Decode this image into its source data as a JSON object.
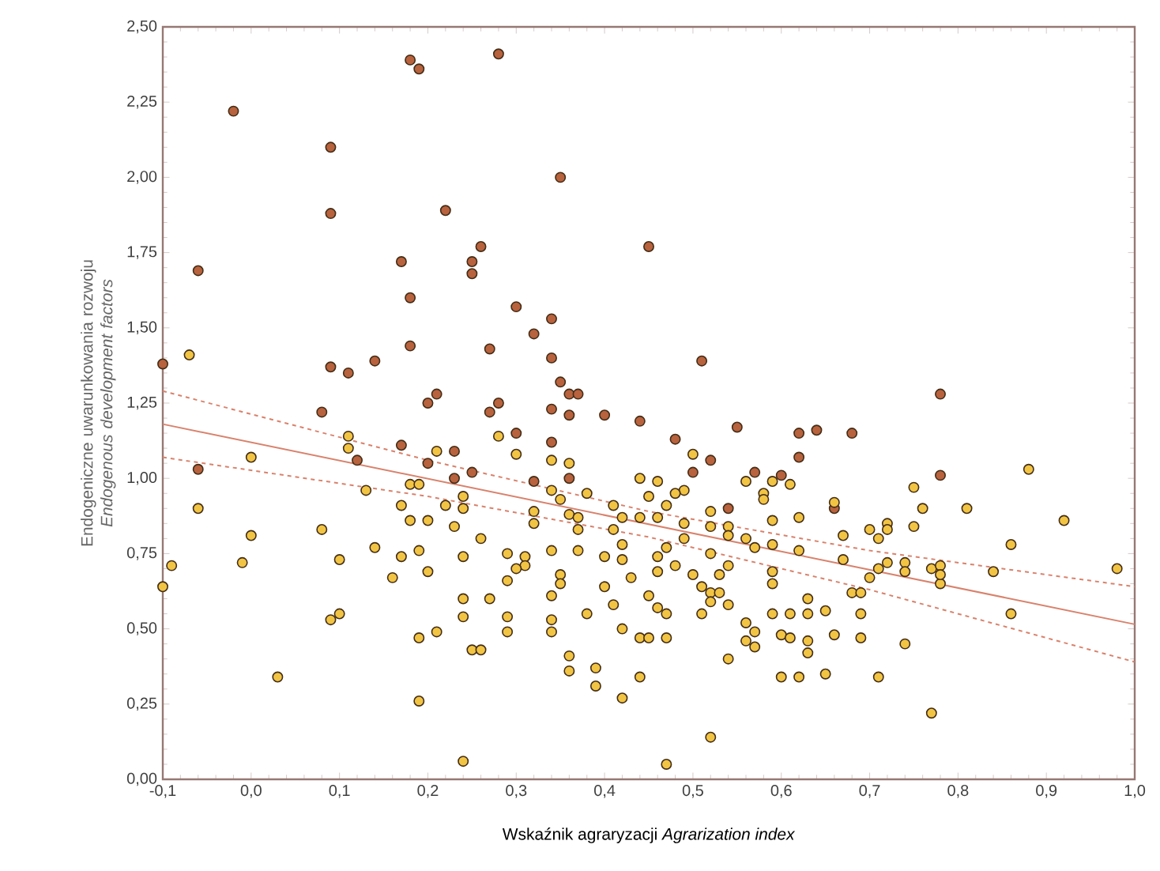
{
  "chart_data": {
    "type": "scatter",
    "xlabel": "Wskaźnik agraryzacji   *Agrarization index*",
    "ylabel": "Endogeniczne uwarunkowania rozwoju *Endogenous development factors*",
    "xlim": [
      -0.1,
      1.0
    ],
    "ylim": [
      0,
      2.5
    ],
    "xticks": [
      {
        "value": -0.1,
        "label": "-0,1"
      },
      {
        "value": 0.0,
        "label": "0,0"
      },
      {
        "value": 0.1,
        "label": "0,1"
      },
      {
        "value": 0.2,
        "label": "0,2"
      },
      {
        "value": 0.3,
        "label": "0,3"
      },
      {
        "value": 0.4,
        "label": "0,4"
      },
      {
        "value": 0.5,
        "label": "0,5"
      },
      {
        "value": 0.6,
        "label": "0,6"
      },
      {
        "value": 0.7,
        "label": "0,7"
      },
      {
        "value": 0.8,
        "label": "0,8"
      },
      {
        "value": 0.9,
        "label": "0,9"
      },
      {
        "value": 1.0,
        "label": "1,0"
      }
    ],
    "yticks": [
      {
        "value": 0,
        "label": "0,00"
      },
      {
        "value": 0.25,
        "label": "0,25"
      },
      {
        "value": 0.5,
        "label": "0,50"
      },
      {
        "value": 0.75,
        "label": "0,75"
      },
      {
        "value": 1.0,
        "label": "1,00"
      },
      {
        "value": 1.25,
        "label": "1,25"
      },
      {
        "value": 1.5,
        "label": "1,50"
      },
      {
        "value": 1.75,
        "label": "1,75"
      },
      {
        "value": 2.0,
        "label": "2,00"
      },
      {
        "value": 2.25,
        "label": "2,25"
      },
      {
        "value": 2.5,
        "label": "2,50"
      }
    ],
    "marker": "circle",
    "series": [
      {
        "color": "#b8623e",
        "x": [
          -0.02,
          0.18,
          0.19,
          0.28,
          0.09,
          0.09,
          0.35,
          0.22,
          -0.06,
          0.17,
          0.25,
          0.25,
          0.26,
          0.45,
          0.18,
          0.3,
          0.34,
          0.32,
          0.34,
          0.27,
          0.18,
          -0.1,
          0.09,
          0.11,
          0.14,
          0.35,
          0.36,
          0.37,
          0.2,
          0.21,
          0.28,
          0.51,
          0.78,
          0.08,
          0.27,
          0.34,
          0.36,
          0.4,
          0.44,
          0.17,
          0.3,
          0.34,
          0.12,
          0.2,
          0.23,
          0.25,
          0.23,
          0.32,
          0.36,
          -0.06,
          0.48,
          0.55,
          0.62,
          0.64,
          0.68,
          0.52,
          0.5,
          0.57,
          0.6,
          0.62,
          0.78,
          0.54,
          0.66
        ],
        "values": [
          2.22,
          2.39,
          2.36,
          2.41,
          2.1,
          1.88,
          2.0,
          1.89,
          1.69,
          1.72,
          1.72,
          1.68,
          1.77,
          1.77,
          1.6,
          1.57,
          1.53,
          1.48,
          1.4,
          1.43,
          1.44,
          1.38,
          1.37,
          1.35,
          1.39,
          1.32,
          1.28,
          1.28,
          1.25,
          1.28,
          1.25,
          1.39,
          1.28,
          1.22,
          1.22,
          1.23,
          1.21,
          1.21,
          1.19,
          1.11,
          1.15,
          1.12,
          1.06,
          1.05,
          1.09,
          1.02,
          1.0,
          0.99,
          1.0,
          1.03,
          1.13,
          1.17,
          1.15,
          1.16,
          1.15,
          1.06,
          1.02,
          1.02,
          1.01,
          1.07,
          1.01,
          0.9,
          0.9
        ]
      },
      {
        "color": "#f2c444",
        "x": [
          -0.07,
          0.11,
          0.11,
          0.21,
          0.28,
          0.3,
          0.34,
          0.36,
          0.0,
          0.13,
          0.18,
          0.19,
          0.24,
          0.24,
          0.22,
          0.17,
          0.18,
          0.2,
          0.23,
          0.26,
          0.34,
          0.35,
          0.38,
          0.32,
          0.32,
          0.36,
          0.37,
          0.37,
          0.41,
          0.42,
          0.44,
          0.45,
          0.44,
          0.41,
          -0.06,
          0.0,
          -0.01,
          0.08,
          0.1,
          -0.09,
          -0.1,
          0.03,
          0.14,
          0.17,
          0.19,
          0.2,
          0.16,
          0.24,
          0.29,
          0.31,
          0.31,
          0.3,
          0.29,
          0.34,
          0.37,
          0.35,
          0.35,
          0.34,
          0.27,
          0.24,
          0.24,
          0.29,
          0.29,
          0.34,
          0.34,
          0.38,
          0.4,
          0.4,
          0.42,
          0.42,
          0.43,
          0.41,
          0.42,
          0.44,
          0.45,
          0.45,
          0.09,
          0.1,
          0.19,
          0.21,
          0.25,
          0.26,
          0.36,
          0.36,
          0.39,
          0.39,
          0.42,
          0.44,
          0.19,
          0.24,
          0.5,
          0.46,
          0.49,
          0.48,
          0.47,
          0.46,
          0.49,
          0.49,
          0.52,
          0.52,
          0.54,
          0.54,
          0.56,
          0.58,
          0.58,
          0.59,
          0.61,
          0.59,
          0.59,
          0.57,
          0.56,
          0.62,
          0.62,
          0.47,
          0.46,
          0.46,
          0.48,
          0.5,
          0.52,
          0.54,
          0.53,
          0.51,
          0.52,
          0.53,
          0.52,
          0.54,
          0.51,
          0.46,
          0.47,
          0.47,
          0.59,
          0.59,
          0.56,
          0.57,
          0.56,
          0.57,
          0.54,
          0.59,
          0.61,
          0.6,
          0.61,
          0.63,
          0.63,
          0.63,
          0.63,
          0.65,
          0.66,
          0.69,
          0.69,
          0.68,
          0.69,
          0.67,
          0.67,
          0.66,
          0.6,
          0.62,
          0.65,
          0.71,
          0.74,
          0.77,
          0.52,
          0.47,
          0.7,
          0.72,
          0.71,
          0.72,
          0.75,
          0.76,
          0.75,
          0.81,
          0.88,
          0.92,
          0.86,
          0.98,
          0.84,
          0.86,
          0.7,
          0.71,
          0.72,
          0.74,
          0.74,
          0.77,
          0.78,
          0.78,
          0.78
        ],
        "values": [
          1.41,
          1.14,
          1.1,
          1.09,
          1.14,
          1.08,
          1.06,
          1.05,
          1.07,
          0.96,
          0.98,
          0.98,
          0.94,
          0.9,
          0.91,
          0.91,
          0.86,
          0.86,
          0.84,
          0.8,
          0.96,
          0.93,
          0.95,
          0.89,
          0.85,
          0.88,
          0.87,
          0.83,
          0.91,
          0.87,
          1.0,
          0.94,
          0.87,
          0.83,
          0.9,
          0.81,
          0.72,
          0.83,
          0.73,
          0.71,
          0.64,
          0.34,
          0.77,
          0.74,
          0.76,
          0.69,
          0.67,
          0.74,
          0.75,
          0.74,
          0.71,
          0.7,
          0.66,
          0.76,
          0.76,
          0.68,
          0.65,
          0.61,
          0.6,
          0.6,
          0.54,
          0.54,
          0.49,
          0.53,
          0.49,
          0.55,
          0.64,
          0.74,
          0.73,
          0.78,
          0.67,
          0.58,
          0.5,
          0.47,
          0.47,
          0.61,
          0.53,
          0.55,
          0.47,
          0.49,
          0.43,
          0.43,
          0.41,
          0.36,
          0.37,
          0.31,
          0.27,
          0.34,
          0.26,
          0.06,
          1.08,
          0.99,
          0.96,
          0.95,
          0.91,
          0.87,
          0.85,
          0.8,
          0.89,
          0.84,
          0.84,
          0.81,
          0.99,
          0.95,
          0.93,
          0.99,
          0.98,
          0.86,
          0.78,
          0.77,
          0.8,
          0.87,
          0.76,
          0.77,
          0.74,
          0.69,
          0.71,
          0.68,
          0.75,
          0.71,
          0.68,
          0.64,
          0.62,
          0.62,
          0.59,
          0.58,
          0.55,
          0.57,
          0.55,
          0.47,
          0.69,
          0.65,
          0.52,
          0.49,
          0.46,
          0.44,
          0.4,
          0.55,
          0.55,
          0.48,
          0.47,
          0.46,
          0.42,
          0.6,
          0.55,
          0.56,
          0.48,
          0.47,
          0.55,
          0.62,
          0.62,
          0.73,
          0.81,
          0.92,
          0.34,
          0.34,
          0.35,
          0.34,
          0.45,
          0.22,
          0.14,
          0.05,
          0.83,
          0.85,
          0.8,
          0.83,
          0.97,
          0.9,
          0.84,
          0.9,
          1.03,
          0.86,
          0.78,
          0.7,
          0.69,
          0.55,
          0.67,
          0.7,
          0.72,
          0.72,
          0.69,
          0.7,
          0.71,
          0.65,
          0.68
        ]
      },
      {
        "type": "line",
        "color": "#d9826c",
        "line_style": "solid",
        "marker": "none",
        "x": [
          -0.1,
          1.0
        ],
        "values": [
          1.18,
          0.515
        ]
      },
      {
        "type": "line",
        "color": "#d9826c",
        "line_style": "dashed",
        "marker": "none",
        "x": [
          -0.1,
          0.2,
          0.45,
          0.7,
          1.0
        ],
        "values": [
          1.29,
          1.06,
          0.89,
          0.76,
          0.64
        ]
      },
      {
        "type": "line",
        "color": "#d9826c",
        "line_style": "dashed",
        "marker": "none",
        "x": [
          -0.1,
          0.2,
          0.45,
          0.7,
          1.0
        ],
        "values": [
          1.07,
          0.94,
          0.805,
          0.63,
          0.39
        ]
      }
    ]
  }
}
